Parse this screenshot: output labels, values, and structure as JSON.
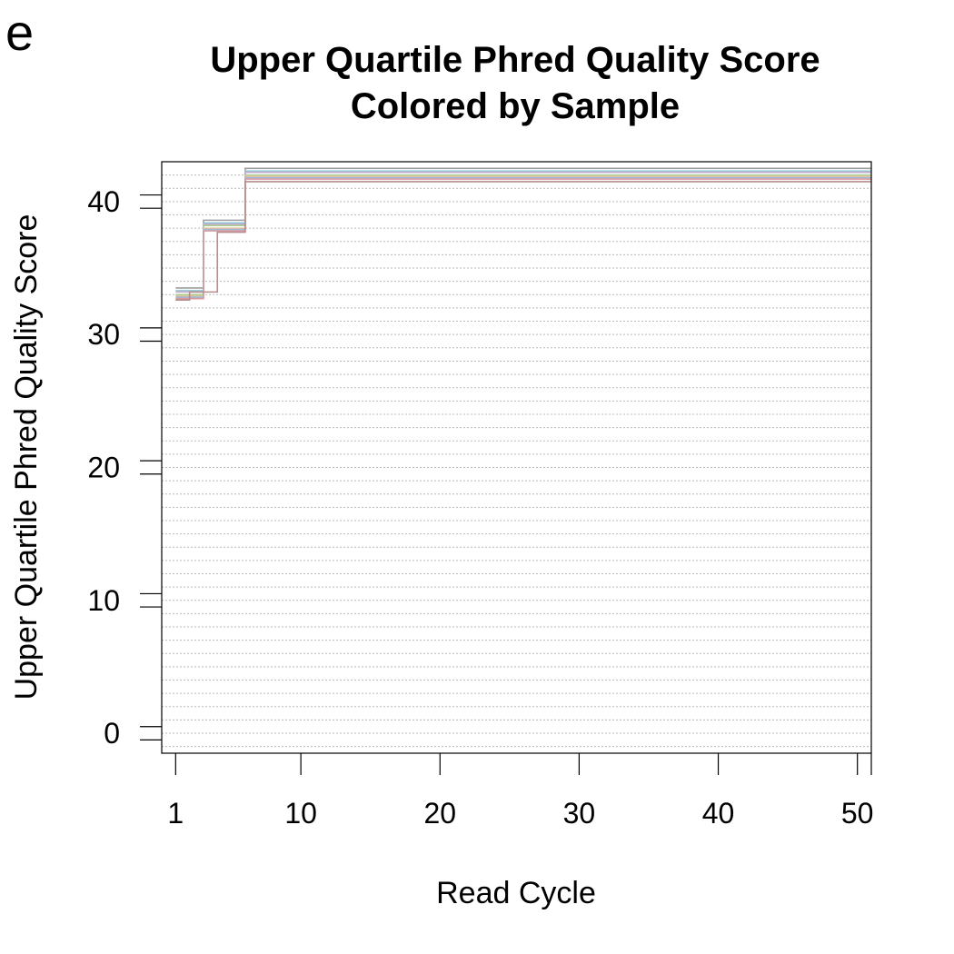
{
  "panel_label": "e",
  "chart_data": {
    "type": "line",
    "title": "Upper Quartile Phred Quality Score",
    "subtitle": "Colored by Sample",
    "xlabel": "Read Cycle",
    "ylabel": "Upper Quartile Phred Quality Score",
    "xlim": [
      0,
      51
    ],
    "ylim": [
      -1.5,
      43
    ],
    "x_ticks": [
      1,
      10,
      20,
      30,
      40,
      50
    ],
    "x_tick_labels": [
      "1",
      "10",
      "20",
      "30",
      "40",
      "50"
    ],
    "x_extra_ticks": [
      51
    ],
    "y_ticks": [
      0,
      10,
      20,
      30,
      40
    ],
    "y_tick_labels": [
      "0",
      "10",
      "20",
      "30",
      "40"
    ],
    "y_minor_offsets": [
      -0.5,
      0.5
    ],
    "grid": true,
    "grid_style": "dotted horizontal",
    "grid_values": [
      -1,
      0,
      1,
      2,
      3,
      4,
      5,
      6,
      7,
      8,
      9,
      10,
      11,
      12,
      13,
      14,
      15,
      16,
      17,
      18,
      19,
      20,
      21,
      22,
      23,
      24,
      25,
      26,
      27,
      28,
      29,
      30,
      31,
      32,
      33,
      34,
      35,
      36,
      37,
      38,
      39,
      40,
      41,
      42
    ],
    "legend": "none",
    "line_style": "step",
    "series": [
      {
        "color": "#9e9e9e",
        "x": [
          1,
          2,
          3,
          4,
          5,
          6,
          51
        ],
        "values": [
          33.5,
          33.5,
          38.6,
          38.6,
          38.6,
          42.5,
          42.5
        ]
      },
      {
        "color": "#8fc6d6",
        "x": [
          1,
          2,
          3,
          4,
          5,
          6,
          51
        ],
        "values": [
          33.3,
          33.3,
          38.4,
          38.4,
          38.4,
          42.3,
          42.3
        ]
      },
      {
        "color": "#c7a9d0",
        "x": [
          1,
          2,
          3,
          4,
          5,
          6,
          51
        ],
        "values": [
          33.2,
          33.2,
          38.3,
          38.3,
          38.3,
          42.2,
          42.2
        ]
      },
      {
        "color": "#a9cf8f",
        "x": [
          1,
          2,
          3,
          4,
          5,
          6,
          51
        ],
        "values": [
          33.0,
          33.0,
          38.2,
          38.2,
          38.2,
          42.0,
          42.0
        ]
      },
      {
        "color": "#e3c49a",
        "x": [
          1,
          2,
          3,
          4,
          5,
          6,
          51
        ],
        "values": [
          32.9,
          32.9,
          38.0,
          38.0,
          38.0,
          41.9,
          41.9
        ]
      },
      {
        "color": "#9fb8d8",
        "x": [
          1,
          2,
          3,
          4,
          5,
          6,
          51
        ],
        "values": [
          32.8,
          32.8,
          37.9,
          37.9,
          37.9,
          41.8,
          41.8
        ]
      },
      {
        "color": "#d79a9e",
        "x": [
          1,
          2,
          3,
          4,
          5,
          6,
          51
        ],
        "values": [
          32.7,
          32.7,
          37.8,
          37.8,
          37.8,
          41.7,
          41.7
        ]
      },
      {
        "color": "#b78c8c",
        "x": [
          1,
          2,
          3,
          4,
          5,
          6,
          51
        ],
        "values": [
          32.6,
          33.2,
          33.2,
          37.7,
          37.7,
          41.5,
          41.5
        ]
      }
    ]
  }
}
